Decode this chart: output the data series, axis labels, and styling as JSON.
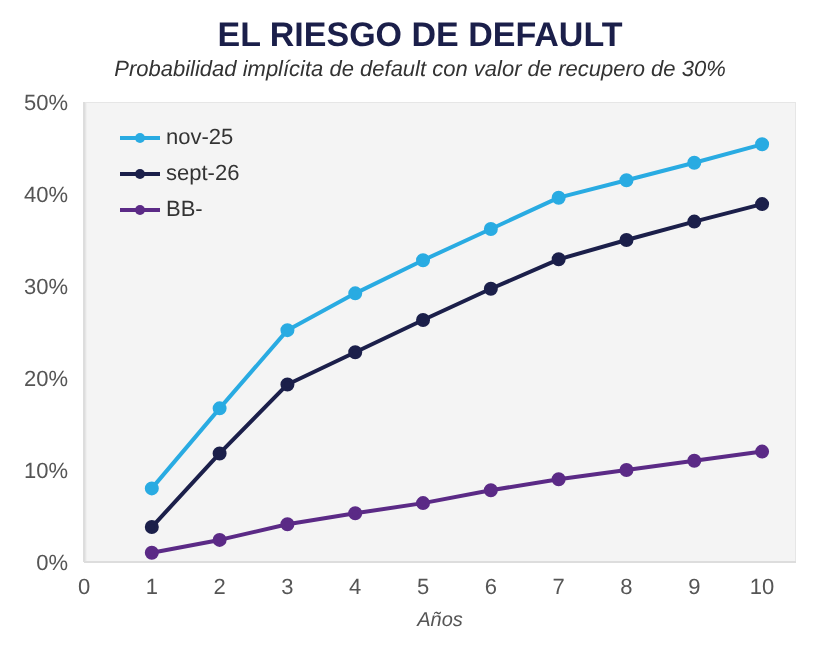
{
  "chart_data": {
    "type": "line",
    "title": "EL RIESGO DE DEFAULT",
    "subtitle": "Probabilidad implícita de default con valor de recupero de 30%",
    "xlabel": "Años",
    "x": [
      1,
      2,
      3,
      4,
      5,
      6,
      7,
      8,
      9,
      10
    ],
    "series": [
      {
        "name": "nov-25",
        "color": "#29abe2",
        "values": [
          8.0,
          16.7,
          25.2,
          29.2,
          32.8,
          36.2,
          39.6,
          41.5,
          43.4,
          45.4
        ]
      },
      {
        "name": "sept-26",
        "color": "#1b1f4a",
        "values": [
          3.8,
          11.8,
          19.3,
          22.8,
          26.3,
          29.7,
          32.9,
          35.0,
          37.0,
          38.9
        ]
      },
      {
        "name": "BB-",
        "color": "#5b2a86",
        "values": [
          1.0,
          2.4,
          4.1,
          5.3,
          6.4,
          7.8,
          9.0,
          10.0,
          11.0,
          12.0
        ]
      }
    ],
    "xlim": [
      0,
      10.5
    ],
    "xticks": [
      0,
      1,
      2,
      3,
      4,
      5,
      6,
      7,
      8,
      9,
      10
    ],
    "ylim": [
      0,
      50
    ],
    "yticks": [
      {
        "value": 0,
        "label": "0%"
      },
      {
        "value": 10,
        "label": "10%"
      },
      {
        "value": 20,
        "label": "20%"
      },
      {
        "value": 30,
        "label": "30%"
      },
      {
        "value": 40,
        "label": "40%"
      },
      {
        "value": 50,
        "label": "50%"
      }
    ],
    "grid": false,
    "legend": "top left",
    "marker": "circle"
  }
}
